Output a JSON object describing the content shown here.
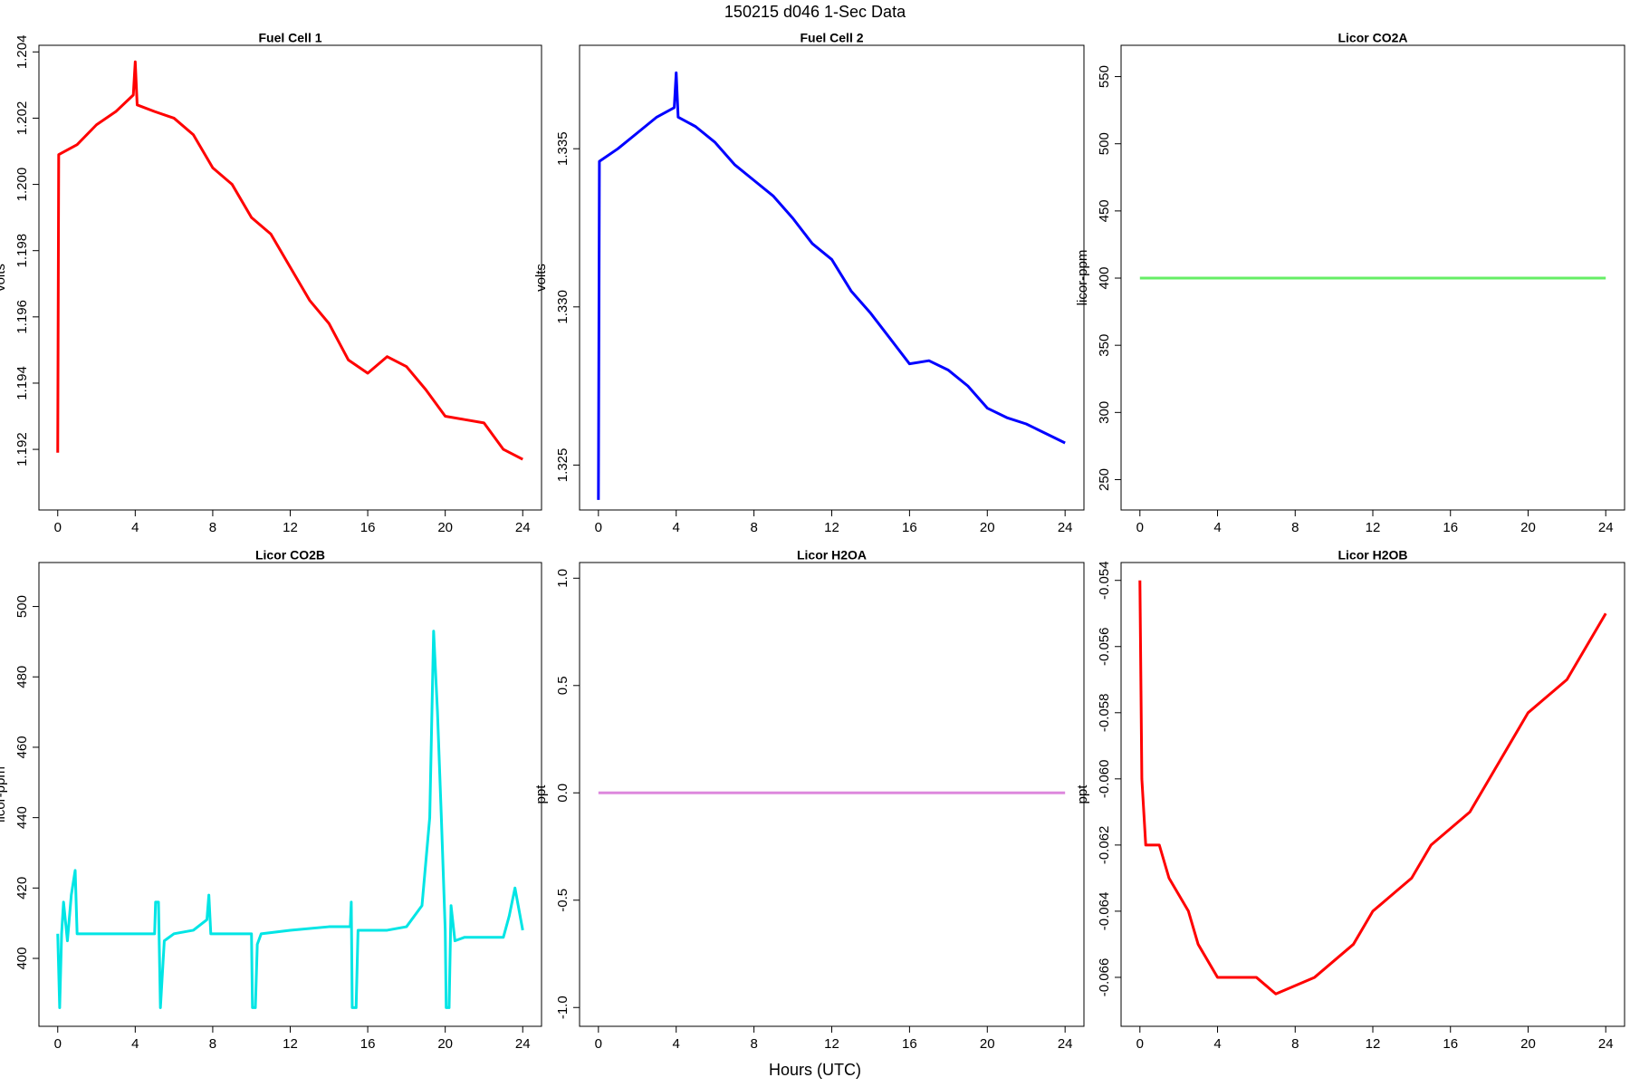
{
  "title": "150215   d046   1-Sec Data",
  "xlabel": "Hours (UTC)",
  "chart_data": [
    {
      "type": "line",
      "title": "Fuel Cell 1",
      "ylabel": "volts",
      "xlim": [
        -0.97,
        24.97
      ],
      "xticks": [
        0,
        4,
        8,
        12,
        16,
        20,
        24
      ],
      "ylim": [
        1.19017,
        1.2042
      ],
      "yticks": [
        1.192,
        1.194,
        1.196,
        1.198,
        {
          "value": 1.2,
          "label": "1.200"
        },
        1.202,
        1.204
      ],
      "series": [
        {
          "color": "#ff0000",
          "x": [
            0,
            0.05,
            1,
            2,
            3,
            3.9,
            4,
            4.1,
            5,
            6,
            7,
            8,
            9,
            10,
            11,
            12,
            13,
            14,
            15,
            16,
            17,
            18,
            19,
            20,
            21,
            22,
            23,
            24
          ],
          "values": [
            1.1919,
            1.2009,
            1.2012,
            1.2018,
            1.2022,
            1.2027,
            1.2037,
            1.2024,
            1.2022,
            1.202,
            1.2015,
            1.2005,
            1.2,
            1.199,
            1.1985,
            1.1975,
            1.1965,
            1.1958,
            1.1947,
            1.1943,
            1.1948,
            1.1945,
            1.1938,
            1.193,
            1.1929,
            1.1928,
            1.192,
            1.1917
          ]
        }
      ]
    },
    {
      "type": "line",
      "title": "Fuel Cell 2",
      "ylabel": "volts",
      "xlim": [
        -0.97,
        24.97
      ],
      "xticks": [
        0,
        4,
        8,
        12,
        16,
        20,
        24
      ],
      "ylim": [
        1.32358,
        1.33827
      ],
      "yticks": [
        1.325,
        {
          "value": 1.33,
          "label": "1.330"
        },
        1.335
      ],
      "series": [
        {
          "color": "#0000ff",
          "x": [
            0,
            0.05,
            1,
            2,
            3,
            3.9,
            4,
            4.1,
            5,
            6,
            7,
            8,
            9,
            10,
            11,
            12,
            13,
            14,
            15,
            16,
            17,
            18,
            19,
            20,
            21,
            22,
            23,
            24
          ],
          "values": [
            1.3239,
            1.3346,
            1.335,
            1.3355,
            1.336,
            1.3363,
            1.3374,
            1.336,
            1.3357,
            1.3352,
            1.3345,
            1.334,
            1.3335,
            1.3328,
            1.332,
            1.3315,
            1.3305,
            1.3298,
            1.329,
            1.3282,
            1.3283,
            1.328,
            1.3275,
            1.3268,
            1.3265,
            1.3263,
            1.326,
            1.3257
          ]
        }
      ]
    },
    {
      "type": "line",
      "title": "Licor CO2A",
      "ylabel": "licor-ppm",
      "xlim": [
        -0.97,
        24.97
      ],
      "xticks": [
        0,
        4,
        8,
        12,
        16,
        20,
        24
      ],
      "ylim": [
        227.4,
        573.3
      ],
      "yticks": [
        250,
        300,
        350,
        400,
        450,
        500,
        550
      ],
      "series": [
        {
          "color": "#66ee66",
          "x": [
            0,
            24
          ],
          "values": [
            400,
            400
          ]
        }
      ]
    },
    {
      "type": "line",
      "title": "Licor CO2B",
      "ylabel": "licor-ppm",
      "xlim": [
        -0.97,
        24.97
      ],
      "xticks": [
        0,
        4,
        8,
        12,
        16,
        20,
        24
      ],
      "ylim": [
        380.7,
        512.5
      ],
      "yticks": [
        400,
        420,
        440,
        460,
        480,
        500
      ],
      "series": [
        {
          "color": "#00e5e5",
          "x": [
            0,
            0.1,
            0.2,
            0.3,
            0.5,
            0.7,
            0.9,
            1.0,
            5.0,
            5.05,
            5.2,
            5.3,
            5.5,
            6,
            7,
            7.7,
            7.8,
            7.9,
            10,
            10.05,
            10.2,
            10.3,
            10.5,
            12,
            14,
            15.1,
            15.15,
            15.2,
            15.4,
            15.5,
            17,
            18,
            18.8,
            19.2,
            19.4,
            19.6,
            19.8,
            20,
            20.05,
            20.2,
            20.3,
            20.5,
            21,
            23,
            23.3,
            23.6,
            24
          ],
          "values": [
            407,
            386,
            407,
            416,
            405,
            418,
            425,
            407,
            407,
            416,
            416,
            386,
            405,
            407,
            408,
            411,
            418,
            407,
            407,
            386,
            386,
            404,
            407,
            408,
            409,
            409,
            416,
            386,
            386,
            408,
            408,
            409,
            415,
            440,
            493,
            470,
            440,
            408,
            386,
            386,
            415,
            405,
            406,
            406,
            412,
            420,
            408
          ]
        }
      ]
    },
    {
      "type": "line",
      "title": "Licor H2OA",
      "ylabel": "ppt",
      "xlim": [
        -0.97,
        24.97
      ],
      "xticks": [
        0,
        4,
        8,
        12,
        16,
        20,
        24
      ],
      "ylim": [
        -1.0876,
        1.073
      ],
      "yticks": [
        {
          "value": -1,
          "label": "-1.0"
        },
        -0.5,
        {
          "value": 0,
          "label": "0.0"
        },
        0.5,
        {
          "value": 1,
          "label": "1.0"
        }
      ],
      "series": [
        {
          "color": "#dd88dd",
          "x": [
            0,
            24
          ],
          "values": [
            0,
            0
          ]
        }
      ]
    },
    {
      "type": "line",
      "title": "Licor H2OB",
      "ylabel": "ppt",
      "xlim": [
        -0.97,
        24.97
      ],
      "xticks": [
        0,
        4,
        8,
        12,
        16,
        20,
        24
      ],
      "ylim": [
        -0.06748,
        -0.05346
      ],
      "yticks": [
        -0.066,
        -0.064,
        -0.062,
        {
          "value": -0.06,
          "label": "-0.060"
        },
        -0.058,
        -0.056,
        -0.054
      ],
      "series": [
        {
          "color": "#ff0000",
          "x": [
            0,
            0.1,
            0.3,
            1,
            1.5,
            2.5,
            3,
            4,
            6,
            7,
            9,
            11,
            12,
            13,
            14,
            15,
            16,
            17,
            18,
            19,
            20,
            21,
            22,
            23,
            24
          ],
          "values": [
            -0.054,
            -0.06,
            -0.062,
            -0.062,
            -0.063,
            -0.064,
            -0.065,
            -0.066,
            -0.066,
            -0.0665,
            -0.066,
            -0.065,
            -0.064,
            -0.0635,
            -0.063,
            -0.062,
            -0.0615,
            -0.061,
            -0.06,
            -0.059,
            -0.058,
            -0.0575,
            -0.057,
            -0.056,
            -0.055
          ]
        }
      ]
    }
  ]
}
